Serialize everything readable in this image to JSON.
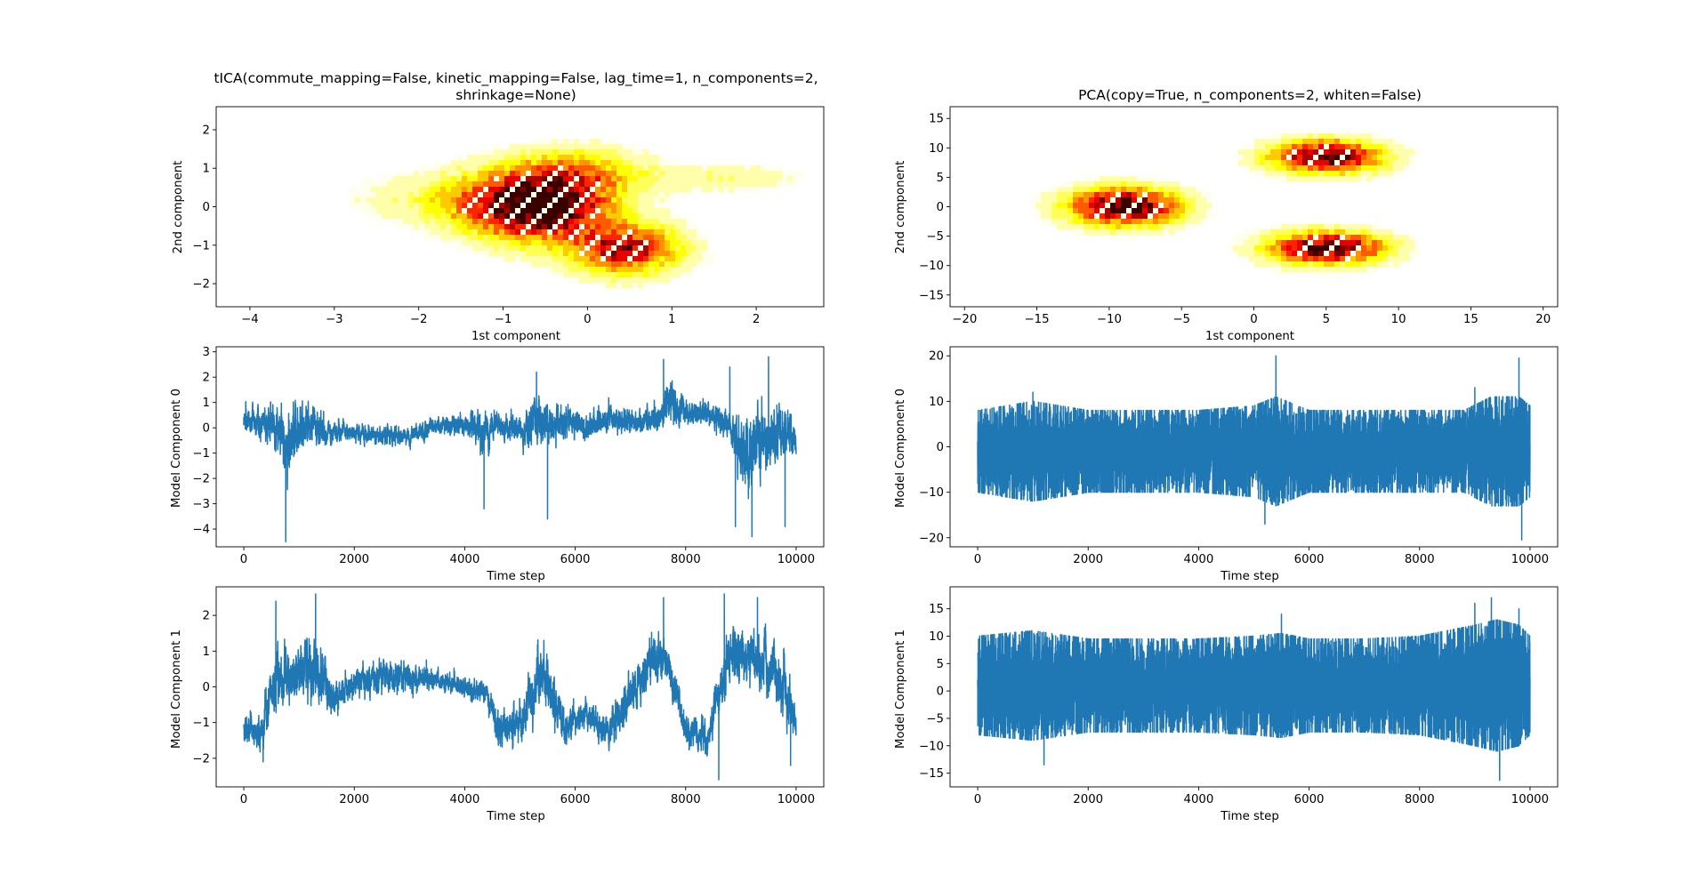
{
  "figure": {
    "background": "#ffffff"
  },
  "chart_data": [
    {
      "id": "tica_scatter",
      "type": "heatmap",
      "style": "filled-contour density",
      "colormap": "hot_r",
      "title_lines": [
        "tICA(commute_mapping=False, kinetic_mapping=False, lag_time=1, n_components=2,",
        "shrinkage=None)"
      ],
      "xlabel": "1st component",
      "ylabel": "2nd component",
      "xlim": [
        -4.4,
        2.8
      ],
      "ylim": [
        -2.6,
        2.6
      ],
      "xticks": [
        -4,
        -3,
        -2,
        -1,
        0,
        1,
        2
      ],
      "xtick_labels": [
        "−4",
        "−3",
        "−2",
        "−1",
        "0",
        "1",
        "2"
      ],
      "yticks": [
        -2,
        -1,
        0,
        1,
        2
      ],
      "ytick_labels": [
        "−2",
        "−1",
        "0",
        "1",
        "2"
      ],
      "density_peaks": [
        {
          "x": -0.6,
          "y": 0.0,
          "sx": 0.55,
          "sy": 0.6,
          "w": 1.0
        },
        {
          "x": 0.45,
          "y": -1.1,
          "sx": 0.45,
          "sy": 0.45,
          "w": 0.75
        },
        {
          "x": -0.1,
          "y": 0.9,
          "sx": 0.55,
          "sy": 0.45,
          "w": 0.35
        },
        {
          "x": -1.3,
          "y": 0.2,
          "sx": 0.9,
          "sy": 0.5,
          "w": 0.25
        },
        {
          "x": 1.6,
          "y": 0.75,
          "sx": 0.7,
          "sy": 0.25,
          "w": 0.15
        }
      ]
    },
    {
      "id": "pca_scatter",
      "type": "heatmap",
      "style": "filled-contour density",
      "colormap": "hot_r",
      "title_lines": [
        "PCA(copy=True, n_components=2, whiten=False)"
      ],
      "xlabel": "1st component",
      "ylabel": "2nd component",
      "xlim": [
        -21,
        21
      ],
      "ylim": [
        -17,
        17
      ],
      "xticks": [
        -20,
        -15,
        -10,
        -5,
        0,
        5,
        10,
        15,
        20
      ],
      "xtick_labels": [
        "−20",
        "−15",
        "−10",
        "−5",
        "0",
        "5",
        "10",
        "15",
        "20"
      ],
      "yticks": [
        -15,
        -10,
        -5,
        0,
        5,
        10,
        15
      ],
      "ytick_labels": [
        "−15",
        "−10",
        "−5",
        "0",
        "5",
        "10",
        "15"
      ],
      "density_peaks": [
        {
          "x": -9,
          "y": 0,
          "sx": 2.7,
          "sy": 2.2,
          "w": 1.0
        },
        {
          "x": 5,
          "y": 8.5,
          "sx": 2.7,
          "sy": 1.9,
          "w": 0.95
        },
        {
          "x": 5,
          "y": -7,
          "sx": 2.8,
          "sy": 1.9,
          "w": 0.95
        }
      ]
    },
    {
      "id": "tica_comp0",
      "type": "line",
      "ylabel": "Model Component 0",
      "xlabel": "Time step",
      "xlim": [
        -500,
        10500
      ],
      "ylim": [
        -4.7,
        3.2
      ],
      "xticks": [
        0,
        2000,
        4000,
        6000,
        8000,
        10000
      ],
      "xtick_labels": [
        "0",
        "2000",
        "4000",
        "6000",
        "8000",
        "10000"
      ],
      "yticks": [
        -4,
        -3,
        -2,
        -1,
        0,
        1,
        2,
        3
      ],
      "ytick_labels": [
        "−4",
        "−3",
        "−2",
        "−1",
        "0",
        "1",
        "2",
        "3"
      ],
      "color": "#1f77b4",
      "n_points": 10000,
      "envelope_t": [
        0,
        500,
        800,
        1200,
        1500,
        2000,
        2500,
        3000,
        3500,
        4000,
        4300,
        4600,
        5100,
        5300,
        5500,
        5800,
        6200,
        6600,
        7000,
        7500,
        7700,
        8000,
        8400,
        8800,
        9100,
        9400,
        9700,
        10000
      ],
      "envelope_mean": [
        0.3,
        0.2,
        -0.6,
        0.2,
        -0.2,
        -0.2,
        -0.3,
        -0.3,
        0.1,
        0.1,
        -0.1,
        0.1,
        -0.2,
        0.6,
        0.0,
        0.3,
        0.0,
        0.4,
        0.2,
        0.3,
        1.0,
        0.5,
        0.5,
        0.2,
        -1.2,
        -0.4,
        -0.2,
        -0.5
      ],
      "envelope_amp": [
        0.5,
        0.7,
        1.4,
        0.8,
        0.5,
        0.35,
        0.4,
        0.35,
        0.35,
        0.4,
        0.9,
        0.5,
        0.6,
        1.2,
        0.8,
        0.7,
        0.5,
        0.5,
        0.5,
        0.5,
        0.9,
        0.5,
        0.5,
        0.6,
        1.6,
        1.2,
        1.2,
        0.7
      ],
      "extremes": [
        {
          "t": 760,
          "v": -4.5
        },
        {
          "t": 7600,
          "v": 2.7
        },
        {
          "t": 8900,
          "v": -3.9
        },
        {
          "t": 9200,
          "v": -4.3
        },
        {
          "t": 9500,
          "v": 2.8
        },
        {
          "t": 5300,
          "v": 2.2
        },
        {
          "t": 5500,
          "v": -3.6
        },
        {
          "t": 4350,
          "v": -3.2
        },
        {
          "t": 9800,
          "v": -3.9
        },
        {
          "t": 8800,
          "v": 2.4
        }
      ]
    },
    {
      "id": "pca_comp0",
      "type": "line",
      "ylabel": "Model Component 0",
      "xlabel": "Time step",
      "xlim": [
        -500,
        10500
      ],
      "ylim": [
        -22,
        22
      ],
      "xticks": [
        0,
        2000,
        4000,
        6000,
        8000,
        10000
      ],
      "xtick_labels": [
        "0",
        "2000",
        "4000",
        "6000",
        "8000",
        "10000"
      ],
      "yticks": [
        -20,
        -10,
        0,
        10,
        20
      ],
      "ytick_labels": [
        "−20",
        "−10",
        "0",
        "10",
        "20"
      ],
      "color": "#1f77b4",
      "n_points": 10000,
      "envelope_t": [
        0,
        1000,
        2000,
        3000,
        4000,
        5000,
        5400,
        6000,
        7000,
        8000,
        8800,
        9300,
        9800,
        10000
      ],
      "envelope_mean": [
        -1,
        -1,
        -1,
        -1,
        -1,
        -1,
        -1,
        -1,
        -1,
        -1,
        -1,
        -1,
        -1,
        -1
      ],
      "envelope_amp": [
        9,
        11,
        9,
        9,
        9,
        10,
        12,
        9,
        9,
        9,
        9,
        12,
        12,
        10
      ],
      "extremes": [
        {
          "t": 5400,
          "v": 20
        },
        {
          "t": 9800,
          "v": 19.5
        },
        {
          "t": 9850,
          "v": -20.5
        },
        {
          "t": 5200,
          "v": -17
        },
        {
          "t": 1000,
          "v": 12
        },
        {
          "t": 9000,
          "v": 13
        }
      ]
    },
    {
      "id": "tica_comp1",
      "type": "line",
      "ylabel": "Model Component 1",
      "xlabel": "Time step",
      "xlim": [
        -500,
        10500
      ],
      "ylim": [
        -2.8,
        2.8
      ],
      "xticks": [
        0,
        2000,
        4000,
        6000,
        8000,
        10000
      ],
      "xtick_labels": [
        "0",
        "2000",
        "4000",
        "6000",
        "8000",
        "10000"
      ],
      "yticks": [
        -2,
        -1,
        0,
        1,
        2
      ],
      "ytick_labels": [
        "−2",
        "−1",
        "0",
        "1",
        "2"
      ],
      "color": "#1f77b4",
      "n_points": 10000,
      "envelope_t": [
        0,
        300,
        600,
        900,
        1300,
        1600,
        2000,
        2500,
        3000,
        3500,
        4000,
        4400,
        4600,
        5000,
        5400,
        5800,
        6200,
        6600,
        7000,
        7500,
        7700,
        8000,
        8400,
        8800,
        9200,
        9600,
        10000
      ],
      "envelope_mean": [
        -1.1,
        -1.4,
        0.3,
        0.3,
        0.6,
        -0.4,
        0.1,
        0.3,
        0.3,
        0.2,
        0.0,
        -0.2,
        -1.2,
        -1.0,
        0.3,
        -1.1,
        -0.8,
        -1.3,
        -0.2,
        0.9,
        0.6,
        -1.3,
        -1.5,
        1.0,
        0.9,
        0.5,
        -1.0
      ],
      "envelope_amp": [
        0.4,
        0.5,
        0.9,
        0.8,
        1.0,
        0.5,
        0.4,
        0.5,
        0.4,
        0.3,
        0.3,
        0.3,
        0.6,
        0.5,
        0.9,
        0.5,
        0.4,
        0.5,
        0.6,
        0.7,
        0.6,
        0.5,
        0.5,
        0.8,
        0.8,
        0.9,
        0.5
      ],
      "extremes": [
        {
          "t": 1300,
          "v": 2.6
        },
        {
          "t": 580,
          "v": 2.4
        },
        {
          "t": 7600,
          "v": 2.5
        },
        {
          "t": 8700,
          "v": 2.6
        },
        {
          "t": 8600,
          "v": -2.6
        },
        {
          "t": 9300,
          "v": 2.5
        },
        {
          "t": 9900,
          "v": -2.2
        },
        {
          "t": 350,
          "v": -2.1
        }
      ]
    },
    {
      "id": "pca_comp1",
      "type": "line",
      "ylabel": "Model Component 1",
      "xlabel": "Time step",
      "xlim": [
        -500,
        10500
      ],
      "ylim": [
        -17.5,
        19
      ],
      "xticks": [
        0,
        2000,
        4000,
        6000,
        8000,
        10000
      ],
      "xtick_labels": [
        "0",
        "2000",
        "4000",
        "6000",
        "8000",
        "10000"
      ],
      "yticks": [
        -15,
        -10,
        -5,
        0,
        5,
        10,
        15
      ],
      "ytick_labels": [
        "−15",
        "−10",
        "−5",
        "0",
        "5",
        "10",
        "15"
      ],
      "color": "#1f77b4",
      "n_points": 10000,
      "envelope_t": [
        0,
        1000,
        2000,
        3000,
        4000,
        5000,
        5500,
        6000,
        7000,
        8000,
        9000,
        9400,
        9800,
        10000
      ],
      "envelope_mean": [
        1,
        1,
        1,
        1,
        1,
        1,
        1,
        1,
        1,
        1,
        1,
        1,
        1,
        1
      ],
      "envelope_amp": [
        9,
        10,
        8.5,
        8.5,
        8.5,
        9,
        9.5,
        8.5,
        8.5,
        9,
        11,
        12,
        11,
        9
      ],
      "extremes": [
        {
          "t": 9300,
          "v": 17
        },
        {
          "t": 9000,
          "v": 16
        },
        {
          "t": 9450,
          "v": -16.3
        },
        {
          "t": 1200,
          "v": -13.5
        },
        {
          "t": 9800,
          "v": 15
        },
        {
          "t": 5500,
          "v": 14
        }
      ]
    }
  ]
}
